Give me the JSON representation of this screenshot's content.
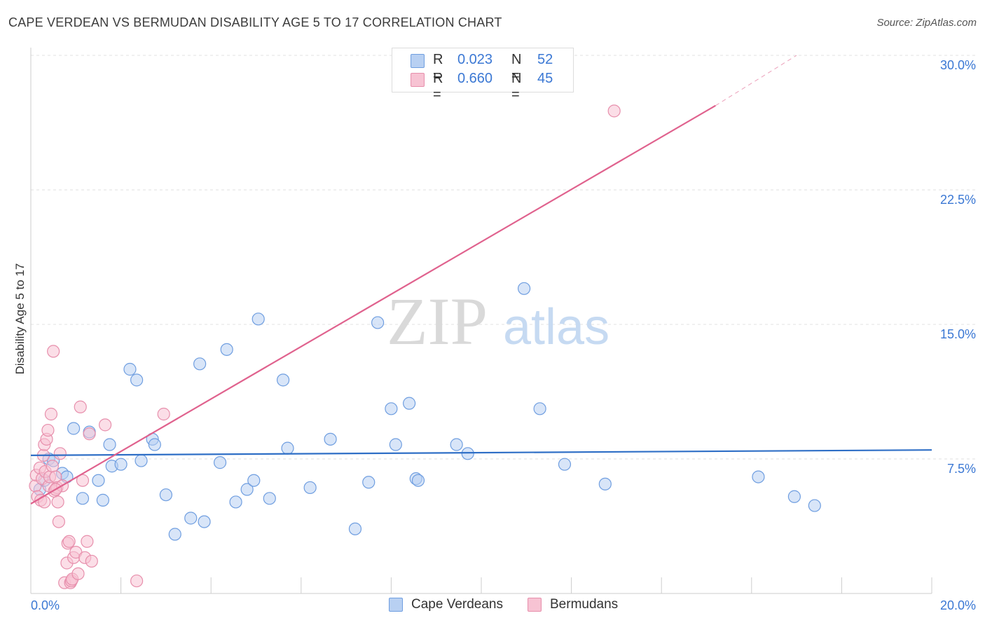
{
  "header": {
    "title": "CAPE VERDEAN VS BERMUDAN DISABILITY AGE 5 TO 17 CORRELATION CHART",
    "source": "Source: ZipAtlas.com"
  },
  "watermark": {
    "zip": "ZIP",
    "atlas": "atlas"
  },
  "legend_top": {
    "rows": [
      {
        "r_label": "R =",
        "r_value": "0.023",
        "n_label": "N =",
        "n_value": "52"
      },
      {
        "r_label": "R =",
        "r_value": "0.660",
        "n_label": "N =",
        "n_value": "45"
      }
    ]
  },
  "legend_bottom": {
    "items": [
      {
        "label": "Cape Verdeans"
      },
      {
        "label": "Bermudans"
      }
    ]
  },
  "colors": {
    "blue_fill": "#b8d0f2",
    "blue_stroke": "#6f9ee0",
    "blue_line": "#2f6fc6",
    "pink_fill": "#f7c3d3",
    "pink_stroke": "#e78fac",
    "pink_line": "#e0628e",
    "tick_text": "#3b78d4",
    "grid": "#e2e2e2"
  },
  "chart_data": {
    "type": "scatter",
    "title": "CAPE VERDEAN VS BERMUDAN DISABILITY AGE 5 TO 17 CORRELATION CHART",
    "xlabel": "",
    "ylabel": "Disability Age 5 to 17",
    "xlim": [
      0,
      20
    ],
    "ylim": [
      0,
      30
    ],
    "x_tick_labels": [
      {
        "value": 0,
        "label": "0.0%"
      },
      {
        "value": 20,
        "label": "20.0%"
      }
    ],
    "y_tick_labels": [
      {
        "value": 7.5,
        "label": "7.5%"
      },
      {
        "value": 15,
        "label": "15.0%"
      },
      {
        "value": 22.5,
        "label": "22.5%"
      },
      {
        "value": 30,
        "label": "30.0%"
      }
    ],
    "series": [
      {
        "name": "Cape Verdeans",
        "color_key": "blue",
        "r": 0.023,
        "n": 52,
        "trend": {
          "x1": 0,
          "y1": 7.7,
          "x2": 20,
          "y2": 8.0
        },
        "points": [
          [
            0.2,
            5.8
          ],
          [
            0.3,
            6.3
          ],
          [
            0.4,
            7.5
          ],
          [
            0.5,
            7.4
          ],
          [
            0.7,
            6.7
          ],
          [
            0.8,
            6.5
          ],
          [
            0.95,
            9.2
          ],
          [
            1.15,
            5.3
          ],
          [
            1.3,
            9.0
          ],
          [
            1.5,
            6.3
          ],
          [
            1.6,
            5.2
          ],
          [
            1.75,
            8.3
          ],
          [
            1.8,
            7.1
          ],
          [
            2.0,
            7.2
          ],
          [
            2.2,
            12.5
          ],
          [
            2.35,
            11.9
          ],
          [
            2.45,
            7.4
          ],
          [
            2.7,
            8.6
          ],
          [
            2.75,
            8.3
          ],
          [
            3.0,
            5.5
          ],
          [
            3.2,
            3.3
          ],
          [
            3.55,
            4.2
          ],
          [
            3.75,
            12.8
          ],
          [
            3.85,
            4.0
          ],
          [
            4.2,
            7.3
          ],
          [
            4.35,
            13.6
          ],
          [
            4.55,
            5.1
          ],
          [
            4.8,
            5.8
          ],
          [
            4.95,
            6.3
          ],
          [
            5.05,
            15.3
          ],
          [
            5.3,
            5.3
          ],
          [
            5.6,
            11.9
          ],
          [
            5.7,
            8.1
          ],
          [
            6.2,
            5.9
          ],
          [
            6.65,
            8.6
          ],
          [
            7.2,
            3.6
          ],
          [
            7.5,
            6.2
          ],
          [
            7.7,
            15.1
          ],
          [
            8.0,
            10.3
          ],
          [
            8.4,
            10.6
          ],
          [
            8.1,
            8.3
          ],
          [
            8.55,
            6.4
          ],
          [
            8.6,
            6.3
          ],
          [
            9.45,
            8.3
          ],
          [
            9.7,
            7.8
          ],
          [
            10.95,
            17.0
          ],
          [
            11.3,
            10.3
          ],
          [
            11.85,
            7.2
          ],
          [
            12.75,
            6.1
          ],
          [
            16.15,
            6.5
          ],
          [
            16.95,
            5.4
          ],
          [
            17.4,
            4.9
          ]
        ]
      },
      {
        "name": "Bermudans",
        "color_key": "pink",
        "r": 0.66,
        "n": 45,
        "trend": {
          "x1": 0,
          "y1": 5.0,
          "x2": 15.2,
          "y2": 27.2
        },
        "trend_extension": {
          "x1": 15.2,
          "y1": 27.2,
          "x2": 17.0,
          "y2": 30.0
        },
        "points": [
          [
            0.1,
            6.0
          ],
          [
            0.12,
            6.6
          ],
          [
            0.15,
            5.4
          ],
          [
            0.2,
            7.0
          ],
          [
            0.22,
            5.2
          ],
          [
            0.25,
            6.4
          ],
          [
            0.28,
            7.7
          ],
          [
            0.3,
            8.3
          ],
          [
            0.32,
            6.8
          ],
          [
            0.35,
            8.6
          ],
          [
            0.38,
            9.1
          ],
          [
            0.4,
            6.0
          ],
          [
            0.42,
            6.5
          ],
          [
            0.45,
            10.0
          ],
          [
            0.48,
            7.1
          ],
          [
            0.5,
            13.5
          ],
          [
            0.52,
            5.7
          ],
          [
            0.55,
            6.5
          ],
          [
            0.58,
            5.9
          ],
          [
            0.6,
            5.1
          ],
          [
            0.62,
            4.0
          ],
          [
            0.65,
            7.8
          ],
          [
            0.7,
            6.0
          ],
          [
            0.75,
            0.6
          ],
          [
            0.8,
            1.7
          ],
          [
            0.82,
            2.8
          ],
          [
            0.85,
            2.9
          ],
          [
            0.88,
            0.6
          ],
          [
            0.9,
            0.7
          ],
          [
            0.92,
            0.8
          ],
          [
            0.95,
            2.0
          ],
          [
            1.0,
            2.3
          ],
          [
            1.05,
            1.1
          ],
          [
            1.1,
            10.4
          ],
          [
            1.15,
            6.3
          ],
          [
            1.2,
            2.0
          ],
          [
            1.25,
            2.9
          ],
          [
            1.3,
            8.9
          ],
          [
            1.35,
            1.8
          ],
          [
            1.65,
            9.4
          ],
          [
            2.35,
            0.7
          ],
          [
            2.95,
            10.0
          ],
          [
            0.3,
            5.1
          ],
          [
            0.55,
            5.8
          ],
          [
            12.95,
            26.9
          ]
        ]
      }
    ]
  }
}
